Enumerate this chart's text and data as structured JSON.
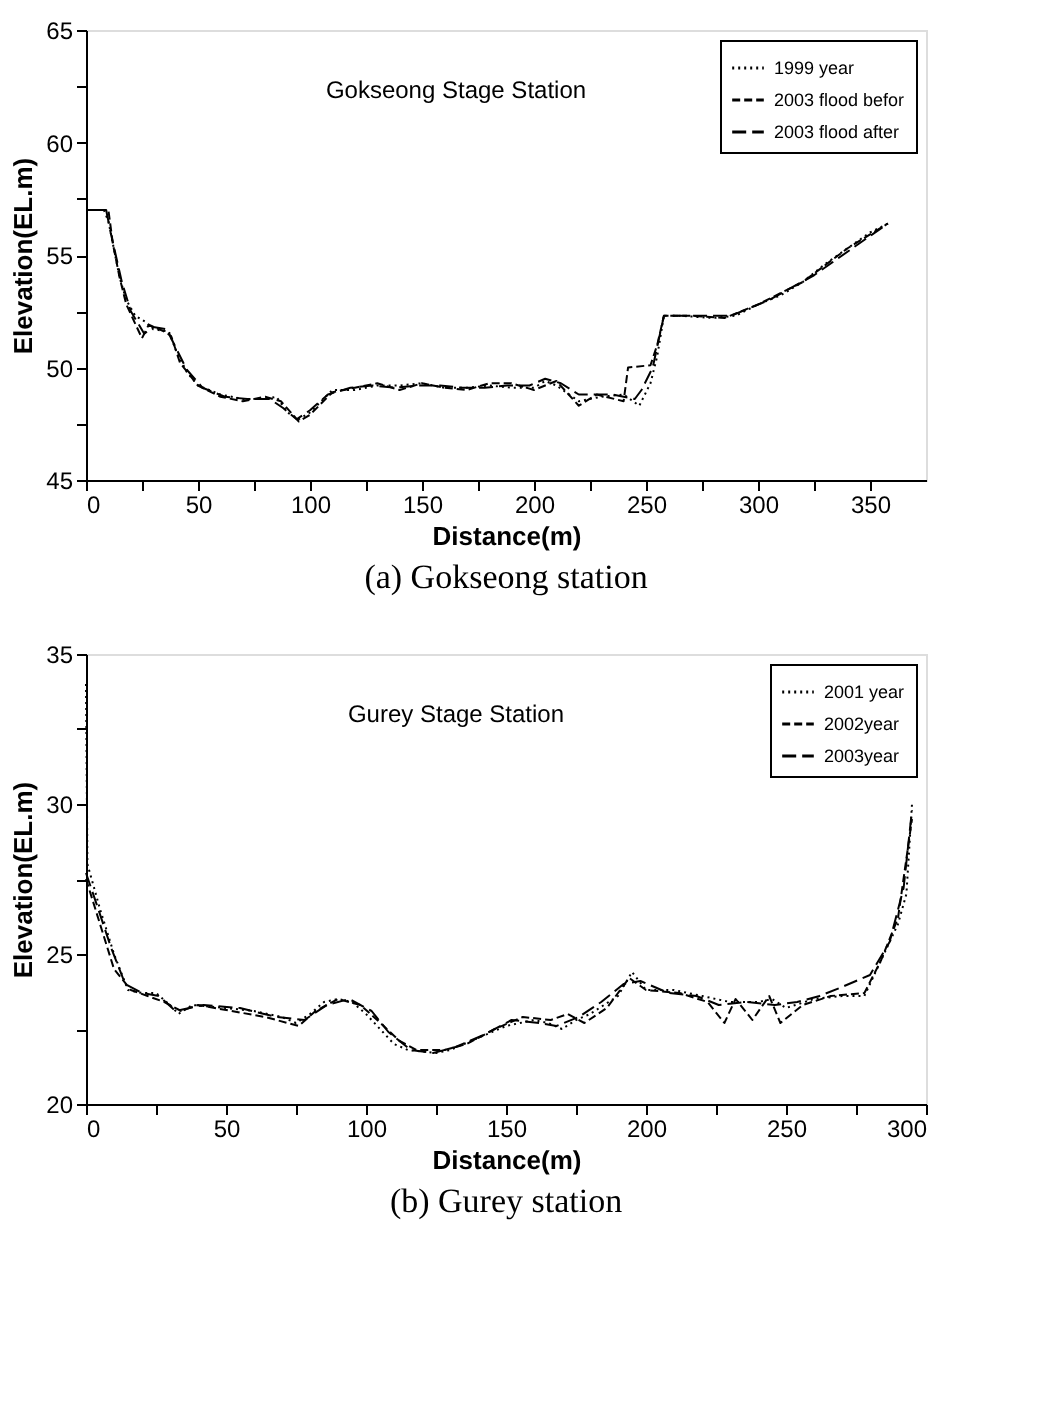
{
  "chart_data": [
    {
      "type": "line",
      "title": "(a)  Gokseong  station",
      "xlabel": "Distance(m)",
      "ylabel": "Elevation(EL.m)",
      "annotations": [
        "Gokseong Stage Station"
      ],
      "xlim": [
        0,
        375
      ],
      "xticks": [
        0,
        {
          "value": 25,
          "label": null
        },
        50,
        {
          "value": 75,
          "label": null
        },
        100,
        {
          "value": 125,
          "label": null
        },
        150,
        {
          "value": 175,
          "label": null
        },
        200,
        {
          "value": 225,
          "label": null
        },
        250,
        {
          "value": 275,
          "label": null
        },
        300,
        {
          "value": 325,
          "label": null
        },
        350
      ],
      "ylim": [
        45,
        65
      ],
      "yticks": [
        45,
        {
          "value": 47.5,
          "label": null
        },
        50,
        {
          "value": 52.5,
          "label": null
        },
        55,
        {
          "value": 57.5,
          "label": null
        },
        60,
        {
          "value": 62.5,
          "label": null
        },
        65
      ],
      "grid": false,
      "legend": "top right",
      "marker": "none",
      "series": [
        {
          "name": "1999 year",
          "color": "#000000",
          "line_style": "dotted",
          "x": [
            0,
            8,
            10,
            15,
            18,
            22,
            27,
            30,
            37,
            40,
            45,
            50,
            60,
            70,
            80,
            85,
            90,
            95,
            100,
            105,
            110,
            120,
            130,
            140,
            150,
            160,
            170,
            180,
            190,
            200,
            205,
            210,
            220,
            230,
            240,
            247,
            252,
            255,
            258,
            265,
            280,
            290,
            300,
            310,
            320,
            330,
            340,
            350,
            358
          ],
          "values": [
            57,
            57,
            56.5,
            54,
            53,
            52.3,
            52,
            51.7,
            51.6,
            50.8,
            49.8,
            49.2,
            48.8,
            48.6,
            48.6,
            48.7,
            48,
            47.7,
            48,
            48.5,
            49,
            49,
            49.2,
            49.2,
            49.3,
            49.1,
            49.1,
            49.2,
            49.1,
            49.1,
            49.4,
            49.2,
            48.5,
            48.7,
            48.8,
            48.3,
            49.3,
            50.5,
            52.3,
            52.3,
            52.2,
            52.3,
            52.8,
            53.2,
            53.8,
            54.6,
            55.3,
            56,
            56.4
          ]
        },
        {
          "name": "2003 flood befor",
          "color": "#000000",
          "line_style": "dashed",
          "x": [
            0,
            10,
            12,
            15,
            18,
            25,
            28,
            35,
            38,
            42,
            50,
            60,
            70,
            80,
            87,
            95,
            100,
            110,
            120,
            130,
            140,
            150,
            160,
            170,
            180,
            190,
            200,
            210,
            220,
            228,
            240,
            242,
            252,
            255,
            258,
            270,
            285,
            300,
            320,
            340,
            358
          ],
          "values": [
            57,
            57,
            55.5,
            54,
            52.8,
            51.3,
            51.9,
            51.6,
            51.4,
            50.2,
            49.2,
            48.7,
            48.5,
            48.7,
            48.5,
            47.6,
            47.9,
            48.9,
            49.1,
            49.3,
            49,
            49.3,
            49.1,
            49,
            49.3,
            49.3,
            49,
            49.4,
            48.3,
            48.8,
            48.5,
            50,
            50.1,
            51,
            52.3,
            52.3,
            52.2,
            52.8,
            53.8,
            55.3,
            56.4
          ]
        },
        {
          "name": "2003 flood after",
          "color": "#000000",
          "line_style": "dashed",
          "x": [
            0,
            9,
            11,
            16,
            20,
            26,
            30,
            36,
            40,
            45,
            52,
            62,
            72,
            82,
            88,
            94,
            100,
            108,
            118,
            128,
            138,
            148,
            158,
            168,
            178,
            188,
            198,
            205,
            212,
            220,
            235,
            245,
            248,
            253,
            258,
            272,
            288,
            305,
            325,
            345,
            358
          ],
          "values": [
            57,
            57,
            56,
            53.8,
            52.5,
            51.5,
            51.8,
            51.7,
            50.9,
            49.9,
            49.1,
            48.7,
            48.6,
            48.6,
            48.2,
            47.7,
            48.1,
            48.8,
            49.1,
            49.2,
            49.1,
            49.2,
            49.2,
            49.1,
            49.1,
            49.2,
            49.2,
            49.5,
            49.3,
            48.8,
            48.8,
            48.6,
            49,
            50,
            52.3,
            52.3,
            52.3,
            53,
            54.1,
            55.5,
            56.4
          ]
        }
      ]
    },
    {
      "type": "line",
      "title": "(b)  Gurey  station",
      "xlabel": "Distance(m)",
      "ylabel": "Elevation(EL.m)",
      "annotations": [
        "Gurey Stage Station"
      ],
      "xlim": [
        0,
        300
      ],
      "xticks": [
        0,
        {
          "value": 25,
          "label": null
        },
        50,
        {
          "value": 75,
          "label": null
        },
        100,
        {
          "value": 125,
          "label": null
        },
        150,
        {
          "value": 175,
          "label": null
        },
        200,
        {
          "value": 225,
          "label": null
        },
        250,
        {
          "value": 275,
          "label": null
        },
        300
      ],
      "ylim": [
        20,
        35
      ],
      "yticks": [
        20,
        {
          "value": 22.5,
          "label": null
        },
        25,
        {
          "value": 27.5,
          "label": null
        },
        30,
        {
          "value": 32.5,
          "label": null
        },
        35
      ],
      "grid": false,
      "legend": "top right",
      "marker": "none",
      "series": [
        {
          "name": "2001 year",
          "color": "#000000",
          "line_style": "dotted",
          "x": [
            0,
            0.5,
            2,
            5,
            10,
            15,
            20,
            25,
            30,
            33,
            38,
            50,
            60,
            70,
            75,
            80,
            85,
            90,
            95,
            100,
            105,
            110,
            115,
            125,
            130,
            140,
            150,
            160,
            165,
            170,
            175,
            180,
            185,
            190,
            195,
            200,
            210,
            220,
            230,
            240,
            245,
            250,
            260,
            270,
            278,
            280,
            285,
            290,
            293,
            295
          ],
          "values": [
            34,
            28,
            27.5,
            26.5,
            25,
            23.8,
            23.7,
            23.7,
            23.3,
            23,
            23.3,
            23.2,
            23.1,
            22.9,
            22.7,
            23,
            23.4,
            23.5,
            23.4,
            23,
            22.5,
            22,
            21.8,
            21.7,
            21.8,
            22.2,
            22.6,
            22.8,
            22.7,
            22.5,
            22.8,
            23,
            23.3,
            23.6,
            24.4,
            23.8,
            23.8,
            23.6,
            23.4,
            23.4,
            23.5,
            23.2,
            23.5,
            23.6,
            23.6,
            24,
            25,
            26,
            27,
            30
          ]
        },
        {
          "name": "2002year",
          "color": "#000000",
          "line_style": "dashed",
          "x": [
            0,
            5,
            10,
            16,
            22,
            28,
            34,
            40,
            52,
            64,
            76,
            82,
            90,
            98,
            104,
            112,
            118,
            128,
            136,
            146,
            156,
            166,
            172,
            178,
            186,
            194,
            200,
            212,
            222,
            228,
            232,
            238,
            244,
            248,
            256,
            266,
            278,
            284,
            290,
            295
          ],
          "values": [
            27.5,
            26,
            24.5,
            23.8,
            23.6,
            23.4,
            23.1,
            23.3,
            23.1,
            22.9,
            22.6,
            23.1,
            23.5,
            23.3,
            22.8,
            22.1,
            21.8,
            21.8,
            22,
            22.5,
            22.9,
            22.8,
            23,
            22.7,
            23.2,
            24.2,
            23.8,
            23.7,
            23.4,
            22.7,
            23.5,
            22.8,
            23.6,
            22.7,
            23.3,
            23.6,
            23.7,
            24.8,
            26.2,
            29.5
          ]
        },
        {
          "name": "2003year",
          "color": "#000000",
          "line_style": "dashed",
          "x": [
            0,
            4,
            9,
            14,
            20,
            26,
            32,
            42,
            55,
            68,
            78,
            86,
            94,
            102,
            108,
            116,
            124,
            132,
            142,
            152,
            162,
            168,
            176,
            184,
            192,
            198,
            208,
            218,
            226,
            236,
            246,
            254,
            262,
            270,
            275,
            280,
            287,
            292,
            295
          ],
          "values": [
            27.7,
            26.6,
            25.2,
            24,
            23.7,
            23.6,
            23.1,
            23.3,
            23.2,
            22.9,
            22.8,
            23.3,
            23.5,
            23.1,
            22.4,
            21.8,
            21.7,
            21.9,
            22.3,
            22.8,
            22.7,
            22.6,
            22.9,
            23.4,
            24,
            24.1,
            23.7,
            23.6,
            23.3,
            23.4,
            23.3,
            23.4,
            23.6,
            23.9,
            24.1,
            24.3,
            25.4,
            27.2,
            29.8
          ]
        }
      ]
    }
  ]
}
